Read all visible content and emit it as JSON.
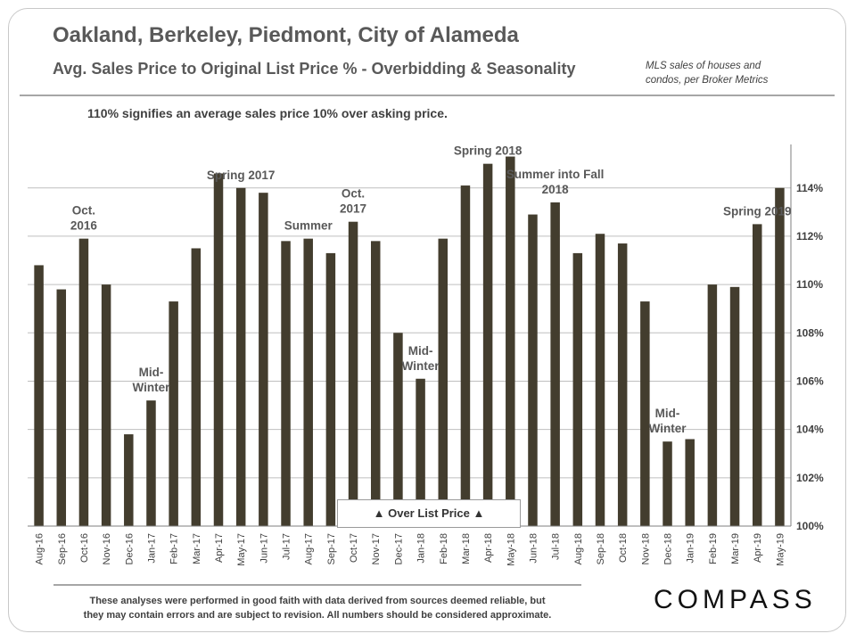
{
  "header": {
    "title": "Oakland, Berkeley, Piedmont, City of Alameda",
    "subtitle": "Avg. Sales Price to Original  List Price % - Overbidding  & Seasonality",
    "source_line1": "MLS sales of houses and",
    "source_line2": "condos,  per Broker Metrics"
  },
  "note": "110% signifies an average sales price 10% over asking price.",
  "over_list_label": "▲ Over List Price ▲",
  "footer": {
    "disclaimer_line1": "These analyses were performed in good faith with data derived from sources deemed reliable, but",
    "disclaimer_line2": "they may contain  errors and are subject to revision.  All numbers should be considered  approximate.",
    "logo": "COMPASS"
  },
  "colors": {
    "bar": "#433d2e",
    "grid": "#bfbfbf",
    "text": "#595959"
  },
  "chart_data": {
    "type": "bar",
    "title": "Avg. Sales Price to Original  List Price % - Overbidding  & Seasonality",
    "xlabel": "",
    "ylabel": "",
    "ylim": [
      100,
      115.8
    ],
    "y_axis_side": "right",
    "grid": true,
    "yticks": [
      "100%",
      "102%",
      "104%",
      "106%",
      "108%",
      "110%",
      "112%",
      "114%"
    ],
    "categories": [
      "Aug-16",
      "Sep-16",
      "Oct-16",
      "Nov-16",
      "Dec-16",
      "Jan-17",
      "Feb-17",
      "Mar-17",
      "Apr-17",
      "May-17",
      "Jun-17",
      "Jul-17",
      "Aug-17",
      "Sep-17",
      "Oct-17",
      "Nov-17",
      "Dec-17",
      "Jan-18",
      "Feb-18",
      "Mar-18",
      "Apr-18",
      "May-18",
      "Jun-18",
      "Jul-18",
      "Aug-18",
      "Sep-18",
      "Oct-18",
      "Nov-18",
      "Dec-18",
      "Jan-19",
      "Feb-19",
      "Mar-19",
      "Apr-19",
      "May-19"
    ],
    "values": [
      110.8,
      109.8,
      111.9,
      110.0,
      103.8,
      105.2,
      109.3,
      111.5,
      114.6,
      114.0,
      113.8,
      111.8,
      111.9,
      111.3,
      112.6,
      111.8,
      108.0,
      106.1,
      111.9,
      114.1,
      115.0,
      115.3,
      112.9,
      113.4,
      111.3,
      112.1,
      111.7,
      109.3,
      103.5,
      103.6,
      110.0,
      109.9,
      112.5,
      114.0
    ],
    "annotations": [
      {
        "lines": [
          "Oct.",
          "2016"
        ],
        "category": "Oct-16"
      },
      {
        "lines": [
          "Mid-",
          "Winter"
        ],
        "category": "Jan-17"
      },
      {
        "lines": [
          "Spring 2017"
        ],
        "category": "May-17"
      },
      {
        "lines": [
          "Summer"
        ],
        "category": "Aug-17"
      },
      {
        "lines": [
          "Oct.",
          "2017"
        ],
        "category": "Oct-17"
      },
      {
        "lines": [
          "Mid-",
          "Winter"
        ],
        "category": "Jan-18"
      },
      {
        "lines": [
          "Spring 2018"
        ],
        "category": "Apr-18"
      },
      {
        "lines": [
          "Summer into Fall",
          "2018"
        ],
        "category": "Jul-18"
      },
      {
        "lines": [
          "Mid-",
          "Winter"
        ],
        "category": "Dec-18"
      },
      {
        "lines": [
          "Spring 2019"
        ],
        "category": "Apr-19"
      }
    ]
  }
}
